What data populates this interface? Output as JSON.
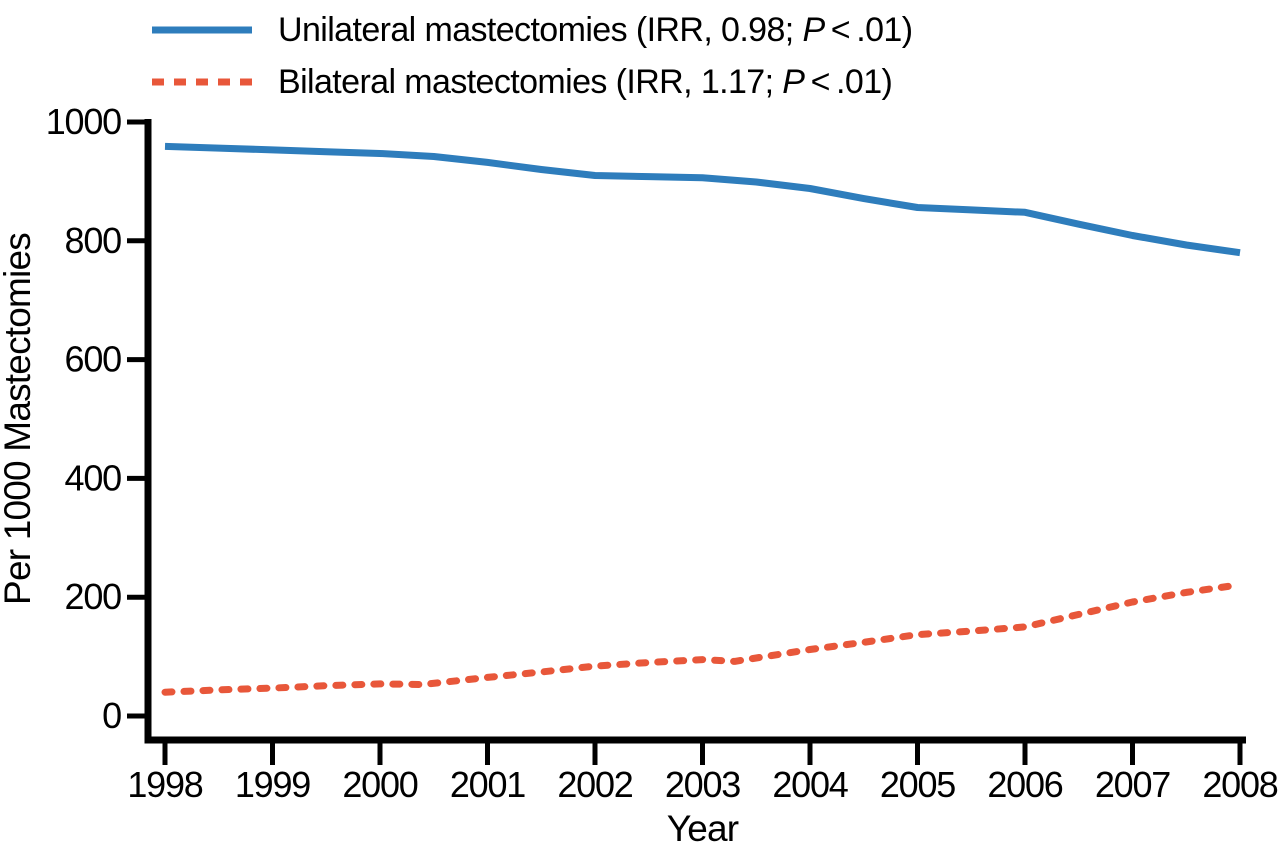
{
  "chart_data": {
    "type": "line",
    "title": "",
    "xlabel": "Year",
    "ylabel": "Per 1000 Mastectomies",
    "x_ticks": [
      1998,
      1999,
      2000,
      2001,
      2002,
      2003,
      2004,
      2005,
      2006,
      2007,
      2008
    ],
    "y_ticks": [
      0,
      200,
      400,
      600,
      800,
      1000
    ],
    "xlim": [
      1998,
      2008
    ],
    "ylim": [
      0,
      1000
    ],
    "grid": false,
    "legend_position": "top-left",
    "axis_color": "#000000",
    "series": [
      {
        "name": "Unilateral mastectomies",
        "irr": "0.98",
        "p_value": "<.01",
        "legend_before": "Unilateral mastectomies (IRR, 0.98; ",
        "legend_p": "P",
        "legend_after": " < .01)",
        "color": "#2e7dbc",
        "style": "solid",
        "x": [
          1998,
          1998.5,
          1999,
          1999.5,
          2000,
          2000.5,
          2001,
          2001.5,
          2002,
          2002.5,
          2003,
          2003.5,
          2004,
          2004.5,
          2005,
          2005.5,
          2006,
          2006.5,
          2007,
          2007.5,
          2008
        ],
        "values": [
          959,
          956,
          953,
          950,
          947,
          942,
          932,
          920,
          910,
          908,
          906,
          899,
          888,
          871,
          856,
          852,
          848,
          828,
          809,
          793,
          780
        ]
      },
      {
        "name": "Bilateral mastectomies",
        "irr": "1.17",
        "p_value": "<.01",
        "legend_before": "Bilateral mastectomies (IRR, 1.17; ",
        "legend_p": "P",
        "legend_after": " < .01)",
        "color": "#e8573a",
        "style": "dashed",
        "x": [
          1998,
          1998.5,
          1999,
          1999.5,
          2000,
          2000.4,
          2001,
          2001.5,
          2002,
          2002.5,
          2003,
          2003.3,
          2004,
          2004.5,
          2005,
          2005.5,
          2006,
          2006.5,
          2007,
          2007.5,
          2008
        ],
        "values": [
          40,
          44,
          47,
          51,
          54,
          53,
          65,
          74,
          84,
          90,
          95,
          92,
          112,
          124,
          137,
          143,
          150,
          171,
          192,
          208,
          221
        ]
      }
    ]
  }
}
